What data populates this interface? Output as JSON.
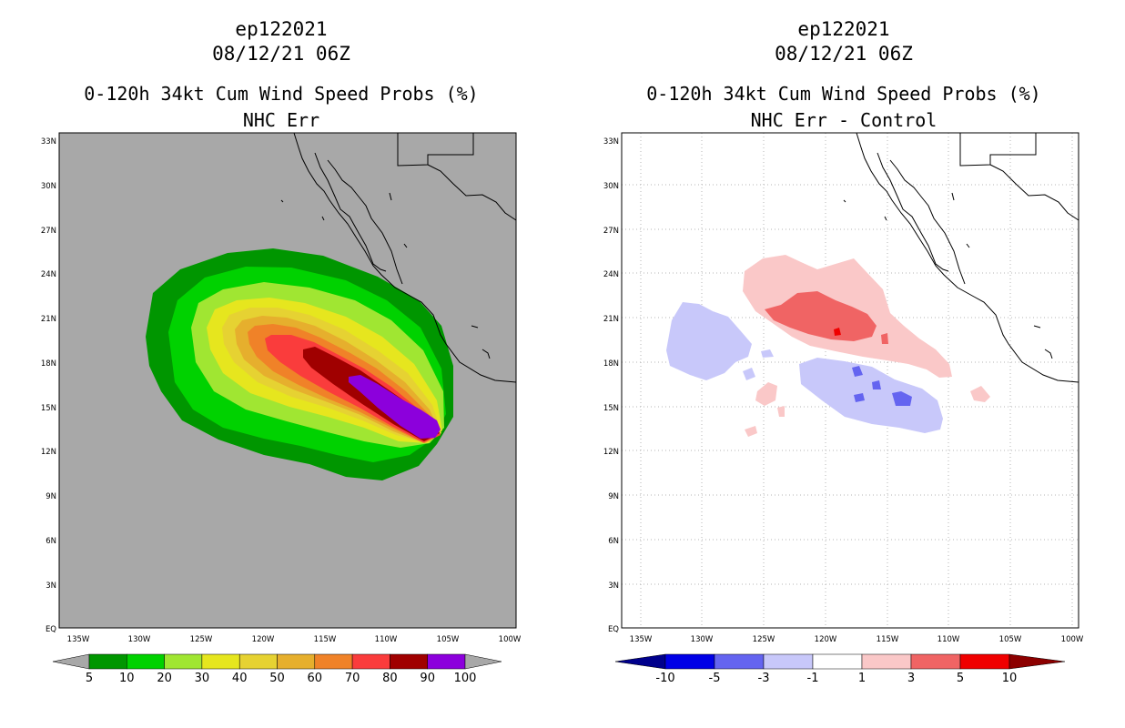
{
  "left": {
    "title_storm": "ep122021",
    "title_date": "08/12/21 06Z",
    "title_product": "0-120h 34kt Cum Wind Speed Probs (%)",
    "title_sub": "NHC Err",
    "lat_ticks": [
      "33N",
      "30N",
      "27N",
      "24N",
      "21N",
      "18N",
      "15N",
      "12N",
      "9N",
      "6N",
      "3N",
      "EQ"
    ],
    "lon_ticks": [
      "135W",
      "130W",
      "125W",
      "120W",
      "115W",
      "110W",
      "105W",
      "100W"
    ],
    "colorbar": {
      "labels": [
        "5",
        "10",
        "20",
        "30",
        "40",
        "50",
        "60",
        "70",
        "80",
        "90",
        "100"
      ],
      "colors": [
        "#009600",
        "#00d200",
        "#a0e632",
        "#e6e61e",
        "#e6d232",
        "#e6af2d",
        "#f08228",
        "#fa3c3c",
        "#a00000",
        "#8c00dc"
      ],
      "over_color": "#a8a8a8",
      "under_color": "#a8a8a8"
    }
  },
  "right": {
    "title_storm": "ep122021",
    "title_date": "08/12/21 06Z",
    "title_product": "0-120h 34kt Cum Wind Speed Probs (%)",
    "title_sub": "NHC Err - Control",
    "lat_ticks": [
      "33N",
      "30N",
      "27N",
      "24N",
      "21N",
      "18N",
      "15N",
      "12N",
      "9N",
      "6N",
      "3N",
      "EQ"
    ],
    "lon_ticks": [
      "135W",
      "130W",
      "125W",
      "120W",
      "115W",
      "110W",
      "105W",
      "100W"
    ],
    "colorbar": {
      "labels": [
        "-10",
        "-5",
        "-3",
        "-1",
        "1",
        "3",
        "5",
        "10"
      ],
      "colors": [
        "#0000e6",
        "#6464f0",
        "#c8c8fa",
        "#ffffff",
        "#fac8c8",
        "#f06464",
        "#f00000"
      ],
      "under_color": "#00008c",
      "over_color": "#8c0000"
    }
  }
}
